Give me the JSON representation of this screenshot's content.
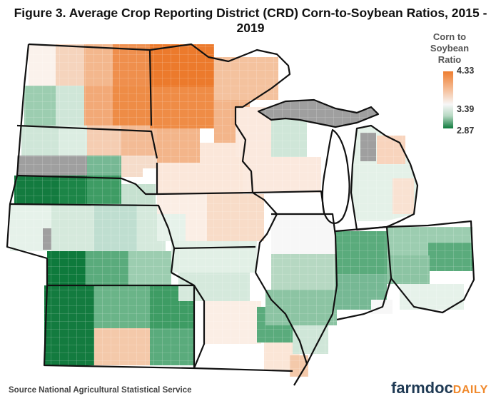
{
  "title": "Figure 3. Average Crop Reporting District (CRD) Corn-to-Soybean Ratios, 2015 - 2019",
  "legend": {
    "title": "Corn to Soybean Ratio",
    "max_label": "4.33",
    "mid_label": "3.39",
    "min_label": "2.87"
  },
  "source": "Source National Agricultural Statistical Service",
  "brand": {
    "part1": "farmdoc",
    "part2": "DAILY"
  },
  "colors": {
    "high": "#ee7d2f",
    "high_light": "#f6c5a3",
    "mid": "#f7f7f7",
    "low_light": "#b6d8c2",
    "low": "#0e7a3c",
    "no_data": "#999999"
  }
}
